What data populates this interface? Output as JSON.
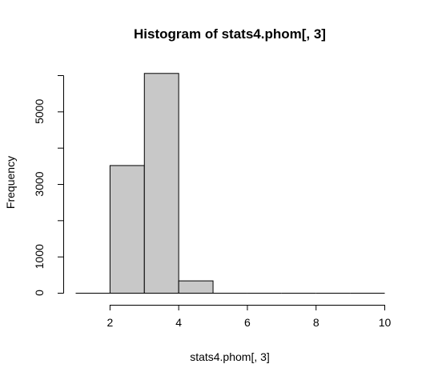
{
  "chart_data": {
    "type": "bar",
    "title": "Histogram of stats4.phom[, 3]",
    "xlabel": "stats4.phom[, 3]",
    "ylabel": "Frequency",
    "bins": [
      {
        "from": 1,
        "to": 2,
        "count": 0
      },
      {
        "from": 2,
        "to": 3,
        "count": 3520
      },
      {
        "from": 3,
        "to": 4,
        "count": 6060
      },
      {
        "from": 4,
        "to": 5,
        "count": 340
      },
      {
        "from": 5,
        "to": 6,
        "count": 0
      },
      {
        "from": 6,
        "to": 7,
        "count": 0
      },
      {
        "from": 7,
        "to": 8,
        "count": 0
      },
      {
        "from": 8,
        "to": 9,
        "count": 0
      },
      {
        "from": 9,
        "to": 10,
        "count": 0
      }
    ],
    "xlim": [
      1,
      10
    ],
    "ylim": [
      0,
      6000
    ],
    "xticks": [
      2,
      4,
      6,
      8,
      10
    ],
    "yticks": [
      0,
      1000,
      3000,
      5000
    ],
    "yticks_minor": [
      2000,
      4000,
      6000
    ],
    "grid": false,
    "bar_color": "#c8c8c8"
  }
}
